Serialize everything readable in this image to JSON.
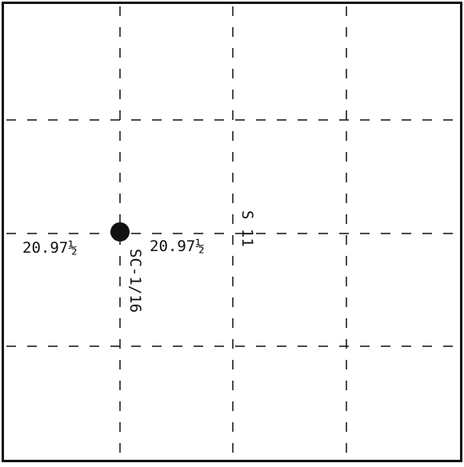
{
  "colors": {
    "ink": "#111111",
    "background": "#ffffff"
  },
  "labels": {
    "left_dimension": "20.97½",
    "right_dimension": "20.97½",
    "vertical_code": "SC-1/16",
    "section_label": "S 11"
  },
  "marker": {
    "shape": "filled-circle"
  }
}
